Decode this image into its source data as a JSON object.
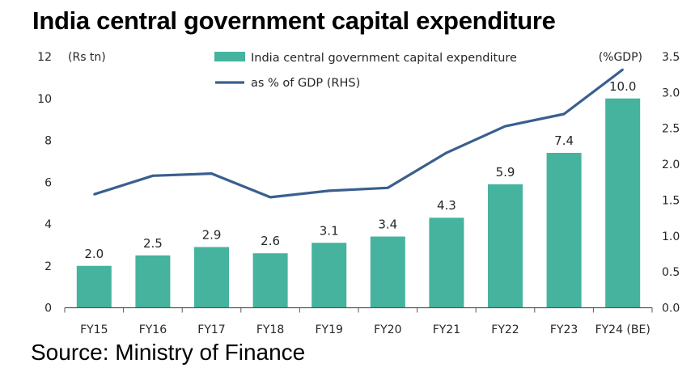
{
  "title": "India central government capital expenditure",
  "source": "Source: Ministry of Finance",
  "colors": {
    "bar": "#45b39d",
    "line": "#3a5f8f",
    "axis": "#595959",
    "text": "#262626"
  },
  "chart_data": {
    "type": "bar",
    "categories": [
      "FY15",
      "FY16",
      "FY17",
      "FY18",
      "FY19",
      "FY20",
      "FY21",
      "FY22",
      "FY23",
      "FY24 (BE)"
    ],
    "series": [
      {
        "name": "India central government capital expenditure",
        "type": "bar",
        "axis": "left",
        "values": [
          2.0,
          2.5,
          2.9,
          2.6,
          3.1,
          3.4,
          4.3,
          5.9,
          7.4,
          10.0
        ],
        "labels": [
          "2.0",
          "2.5",
          "2.9",
          "2.6",
          "3.1",
          "3.4",
          "4.3",
          "5.9",
          "7.4",
          "10.0"
        ]
      },
      {
        "name": "as % of GDP (RHS)",
        "type": "line",
        "axis": "right",
        "values": [
          1.58,
          1.84,
          1.87,
          1.54,
          1.63,
          1.67,
          2.16,
          2.53,
          2.7,
          3.32
        ]
      }
    ],
    "y_left": {
      "unit": "(Rs tn)",
      "ylim": [
        0,
        12
      ],
      "ticks": [
        "0",
        "2",
        "4",
        "6",
        "8",
        "10",
        "12"
      ]
    },
    "y_right": {
      "unit": "(%GDP)",
      "ylim": [
        0,
        3.5
      ],
      "ticks": [
        "0.0",
        "0.5",
        "1.0",
        "1.5",
        "2.0",
        "2.5",
        "3.0",
        "3.5"
      ]
    },
    "grid": false,
    "legend": "top-center"
  }
}
